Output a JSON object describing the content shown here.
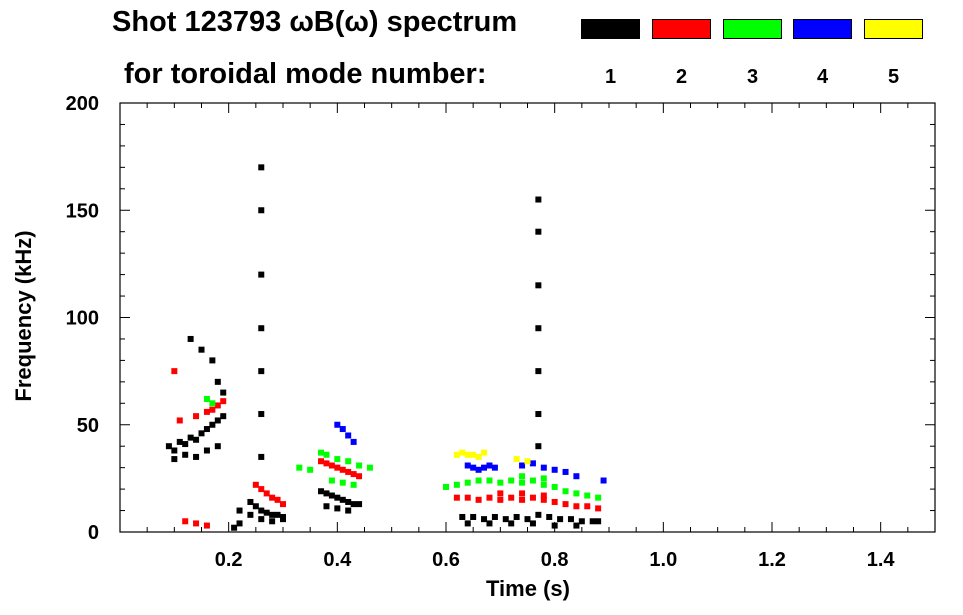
{
  "chart_data": {
    "type": "scatter",
    "title_line1": "Shot 123793 ωB(ω) spectrum",
    "title_line2": "for toroidal mode number:",
    "xlabel": "Time (s)",
    "ylabel": "Frequency (kHz)",
    "xlim": [
      0.0,
      1.5
    ],
    "ylim": [
      0,
      200
    ],
    "x_ticks": [
      0.2,
      0.4,
      0.6,
      0.8,
      1.0,
      1.2,
      1.4
    ],
    "x_tick_labels": [
      "0.2",
      "0.4",
      "0.6",
      "0.8",
      "1.0",
      "1.2",
      "1.4"
    ],
    "y_ticks": [
      0,
      50,
      100,
      150,
      200
    ],
    "y_tick_labels": [
      "0",
      "50",
      "100",
      "150",
      "200"
    ],
    "grid": false,
    "legend": [
      {
        "label": "1",
        "color": "#000000"
      },
      {
        "label": "2",
        "color": "#ff0000"
      },
      {
        "label": "3",
        "color": "#00ff00"
      },
      {
        "label": "4",
        "color": "#0000ff"
      },
      {
        "label": "5",
        "color": "#ffff00"
      }
    ],
    "series": [
      {
        "name": "1",
        "color": "#000000",
        "points": [
          [
            0.09,
            40
          ],
          [
            0.1,
            38
          ],
          [
            0.11,
            42
          ],
          [
            0.12,
            41
          ],
          [
            0.13,
            44
          ],
          [
            0.14,
            43
          ],
          [
            0.15,
            46
          ],
          [
            0.16,
            48
          ],
          [
            0.17,
            50
          ],
          [
            0.18,
            52
          ],
          [
            0.19,
            54
          ],
          [
            0.1,
            34
          ],
          [
            0.12,
            36
          ],
          [
            0.14,
            35
          ],
          [
            0.16,
            38
          ],
          [
            0.18,
            40
          ],
          [
            0.24,
            14
          ],
          [
            0.25,
            12
          ],
          [
            0.26,
            10
          ],
          [
            0.27,
            9
          ],
          [
            0.28,
            8
          ],
          [
            0.29,
            8
          ],
          [
            0.3,
            7
          ],
          [
            0.24,
            8
          ],
          [
            0.26,
            6
          ],
          [
            0.28,
            5
          ],
          [
            0.3,
            6
          ],
          [
            0.37,
            19
          ],
          [
            0.38,
            18
          ],
          [
            0.39,
            17
          ],
          [
            0.4,
            16
          ],
          [
            0.41,
            15
          ],
          [
            0.42,
            14
          ],
          [
            0.43,
            13
          ],
          [
            0.44,
            13
          ],
          [
            0.38,
            12
          ],
          [
            0.4,
            11
          ],
          [
            0.42,
            10
          ],
          [
            0.63,
            7
          ],
          [
            0.65,
            7
          ],
          [
            0.67,
            6
          ],
          [
            0.69,
            7
          ],
          [
            0.71,
            6
          ],
          [
            0.73,
            7
          ],
          [
            0.75,
            6
          ],
          [
            0.77,
            8
          ],
          [
            0.79,
            7
          ],
          [
            0.81,
            6
          ],
          [
            0.83,
            6
          ],
          [
            0.85,
            5
          ],
          [
            0.87,
            5
          ],
          [
            0.88,
            5
          ],
          [
            0.64,
            4
          ],
          [
            0.68,
            4
          ],
          [
            0.72,
            4
          ],
          [
            0.76,
            4
          ],
          [
            0.8,
            3
          ],
          [
            0.84,
            3
          ],
          [
            0.26,
            170
          ],
          [
            0.26,
            150
          ],
          [
            0.26,
            120
          ],
          [
            0.26,
            95
          ],
          [
            0.26,
            75
          ],
          [
            0.26,
            55
          ],
          [
            0.26,
            35
          ],
          [
            0.77,
            155
          ],
          [
            0.77,
            140
          ],
          [
            0.77,
            115
          ],
          [
            0.77,
            95
          ],
          [
            0.77,
            75
          ],
          [
            0.77,
            55
          ],
          [
            0.77,
            40
          ],
          [
            0.13,
            90
          ],
          [
            0.15,
            85
          ],
          [
            0.17,
            80
          ],
          [
            0.18,
            70
          ],
          [
            0.19,
            65
          ],
          [
            0.22,
            10
          ],
          [
            0.22,
            4
          ],
          [
            0.21,
            2
          ]
        ]
      },
      {
        "name": "2",
        "color": "#ff0000",
        "points": [
          [
            0.1,
            75
          ],
          [
            0.11,
            52
          ],
          [
            0.14,
            54
          ],
          [
            0.16,
            56
          ],
          [
            0.17,
            57
          ],
          [
            0.18,
            59
          ],
          [
            0.19,
            61
          ],
          [
            0.12,
            5
          ],
          [
            0.14,
            4
          ],
          [
            0.16,
            3
          ],
          [
            0.25,
            22
          ],
          [
            0.26,
            20
          ],
          [
            0.27,
            18
          ],
          [
            0.28,
            16
          ],
          [
            0.29,
            15
          ],
          [
            0.3,
            13
          ],
          [
            0.37,
            33
          ],
          [
            0.38,
            32
          ],
          [
            0.39,
            31
          ],
          [
            0.4,
            30
          ],
          [
            0.41,
            29
          ],
          [
            0.42,
            28
          ],
          [
            0.43,
            27
          ],
          [
            0.44,
            26
          ],
          [
            0.62,
            16
          ],
          [
            0.64,
            16
          ],
          [
            0.66,
            15
          ],
          [
            0.68,
            16
          ],
          [
            0.7,
            15
          ],
          [
            0.72,
            16
          ],
          [
            0.74,
            15
          ],
          [
            0.76,
            16
          ],
          [
            0.78,
            15
          ],
          [
            0.8,
            14
          ],
          [
            0.82,
            13
          ],
          [
            0.84,
            12
          ],
          [
            0.86,
            12
          ],
          [
            0.88,
            11
          ],
          [
            0.7,
            18
          ],
          [
            0.74,
            18
          ],
          [
            0.78,
            17
          ]
        ]
      },
      {
        "name": "3",
        "color": "#00ff00",
        "points": [
          [
            0.16,
            62
          ],
          [
            0.17,
            60
          ],
          [
            0.33,
            30
          ],
          [
            0.35,
            29
          ],
          [
            0.37,
            37
          ],
          [
            0.38,
            36
          ],
          [
            0.4,
            34
          ],
          [
            0.42,
            33
          ],
          [
            0.44,
            31
          ],
          [
            0.46,
            30
          ],
          [
            0.39,
            24
          ],
          [
            0.41,
            23
          ],
          [
            0.43,
            22
          ],
          [
            0.6,
            21
          ],
          [
            0.62,
            22
          ],
          [
            0.64,
            23
          ],
          [
            0.66,
            24
          ],
          [
            0.68,
            24
          ],
          [
            0.7,
            23
          ],
          [
            0.72,
            24
          ],
          [
            0.74,
            23
          ],
          [
            0.76,
            24
          ],
          [
            0.78,
            22
          ],
          [
            0.8,
            21
          ],
          [
            0.82,
            19
          ],
          [
            0.84,
            18
          ],
          [
            0.86,
            17
          ],
          [
            0.88,
            16
          ],
          [
            0.74,
            26
          ],
          [
            0.78,
            25
          ]
        ]
      },
      {
        "name": "4",
        "color": "#0000ff",
        "points": [
          [
            0.4,
            50
          ],
          [
            0.41,
            48
          ],
          [
            0.42,
            45
          ],
          [
            0.43,
            42
          ],
          [
            0.64,
            31
          ],
          [
            0.65,
            30
          ],
          [
            0.66,
            29
          ],
          [
            0.67,
            30
          ],
          [
            0.68,
            31
          ],
          [
            0.69,
            30
          ],
          [
            0.74,
            31
          ],
          [
            0.76,
            32
          ],
          [
            0.78,
            30
          ],
          [
            0.8,
            29
          ],
          [
            0.82,
            28
          ],
          [
            0.84,
            26
          ],
          [
            0.89,
            24
          ]
        ]
      },
      {
        "name": "5",
        "color": "#ffff00",
        "points": [
          [
            0.62,
            36
          ],
          [
            0.63,
            37
          ],
          [
            0.64,
            36
          ],
          [
            0.65,
            36
          ],
          [
            0.66,
            35
          ],
          [
            0.67,
            37
          ],
          [
            0.73,
            34
          ],
          [
            0.75,
            33
          ]
        ]
      }
    ]
  }
}
